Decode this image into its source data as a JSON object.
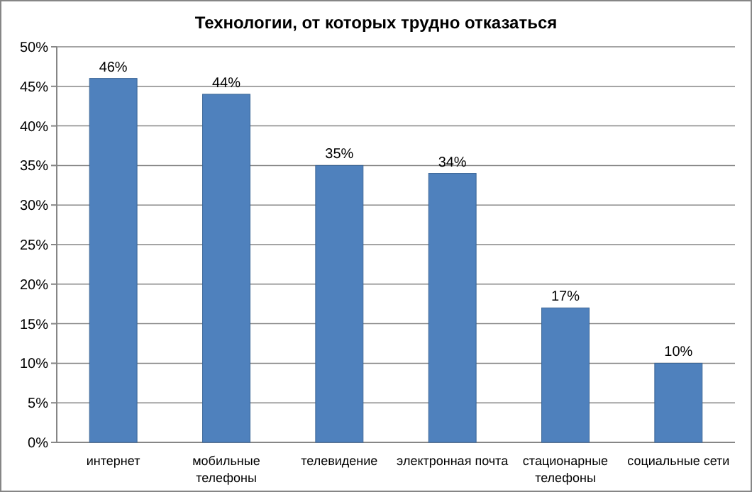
{
  "chart_data": {
    "type": "bar",
    "title": "Технологии, от которых трудно отказаться",
    "categories": [
      "интернет",
      "мобильные телефоны",
      "телевидение",
      "электронная почта",
      "стационарные телефоны",
      "социальные сети"
    ],
    "values": [
      46,
      44,
      35,
      34,
      17,
      10
    ],
    "value_labels": [
      "46%",
      "44%",
      "35%",
      "34%",
      "17%",
      "10%"
    ],
    "color": "#4f81bd",
    "ylim": [
      0,
      50
    ],
    "yticks": [
      {
        "value": 0,
        "label": "0%"
      },
      {
        "value": 5,
        "label": "5%"
      },
      {
        "value": 10,
        "label": "10%"
      },
      {
        "value": 15,
        "label": "15%"
      },
      {
        "value": 20,
        "label": "20%"
      },
      {
        "value": 25,
        "label": "25%"
      },
      {
        "value": 30,
        "label": "30%"
      },
      {
        "value": 35,
        "label": "35%"
      },
      {
        "value": 40,
        "label": "40%"
      },
      {
        "value": 45,
        "label": "45%"
      },
      {
        "value": 50,
        "label": "50%"
      }
    ],
    "grid": true
  }
}
